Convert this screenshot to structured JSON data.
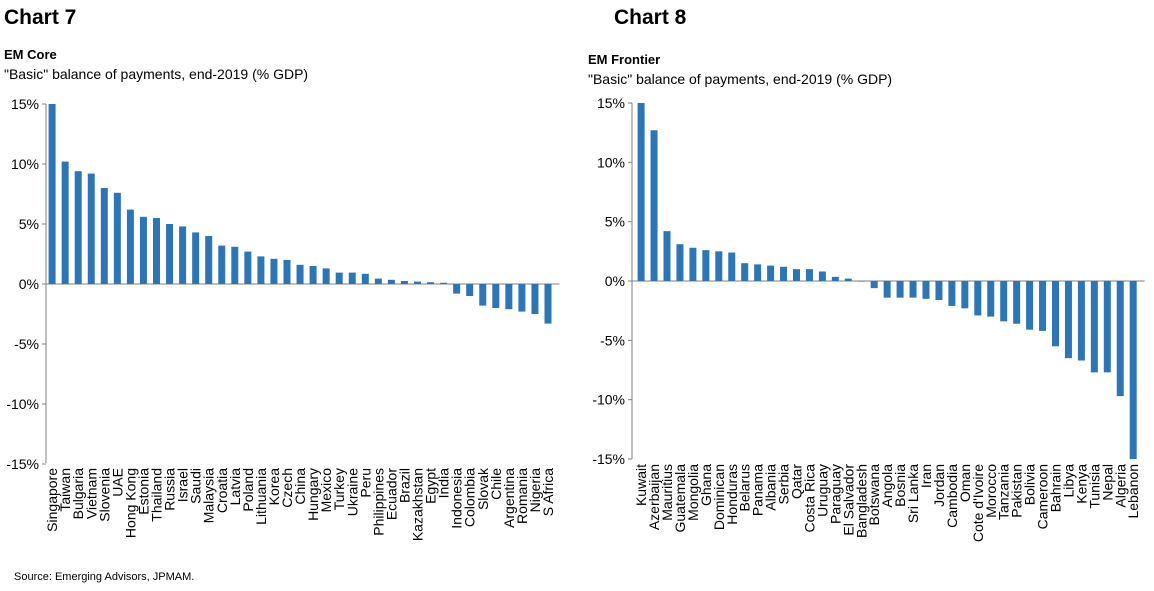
{
  "source": "Source: Emerging Advisors, JPMAM.",
  "charts": [
    {
      "heading": "Chart 7",
      "title": "EM Core",
      "subtitle": "\"Basic\" balance of payments, end-2019 (% GDP)"
    },
    {
      "heading": "Chart 8",
      "title": "EM Frontier",
      "subtitle": "\"Basic\" balance of payments, end-2019 (% GDP)"
    }
  ],
  "colors": {
    "bar": "#2e75b6",
    "axis": "#808080"
  },
  "chart_data": [
    {
      "type": "bar",
      "title": "EM Core",
      "subtitle": "\"Basic\" balance of payments, end-2019 (% GDP)",
      "ylim": [
        -15,
        15
      ],
      "yticks": [
        15,
        10,
        5,
        0,
        -5,
        -10,
        -15
      ],
      "ytick_labels": [
        "15%",
        "10%",
        "5%",
        "0%",
        "-5%",
        "-10%",
        "-15%"
      ],
      "grid": false,
      "categories": [
        "Singapore",
        "Taiwan",
        "Bulgaria",
        "Vietnam",
        "Slovenia",
        "UAE",
        "Hong Kong",
        "Estonia",
        "Thailand",
        "Russia",
        "Israel",
        "Saudi",
        "Malaysia",
        "Croatia",
        "Latvia",
        "Poland",
        "Lithuania",
        "Korea",
        "Czech",
        "China",
        "Hungary",
        "Mexico",
        "Turkey",
        "Ukraine",
        "Peru",
        "Philippines",
        "Ecuador",
        "Brazil",
        "Kazakhstan",
        "Egypt",
        "India",
        "Indonesia",
        "Colombia",
        "Slovak",
        "Chile",
        "Argentina",
        "Romania",
        "Nigeria",
        "S Africa"
      ],
      "values": [
        15.0,
        10.2,
        9.4,
        9.2,
        8.0,
        7.6,
        6.2,
        5.6,
        5.5,
        5.0,
        4.8,
        4.3,
        4.0,
        3.2,
        3.1,
        2.7,
        2.3,
        2.1,
        2.0,
        1.6,
        1.5,
        1.3,
        0.95,
        0.95,
        0.85,
        0.45,
        0.35,
        0.25,
        0.2,
        0.15,
        0.1,
        -0.8,
        -1.0,
        -1.8,
        -2.0,
        -2.1,
        -2.3,
        -2.5,
        -3.3
      ]
    },
    {
      "type": "bar",
      "title": "EM Frontier",
      "subtitle": "\"Basic\" balance of payments, end-2019 (% GDP)",
      "ylim": [
        -15,
        15
      ],
      "yticks": [
        15,
        10,
        5,
        0,
        -5,
        -10,
        -15
      ],
      "ytick_labels": [
        "15%",
        "10%",
        "5%",
        "0%",
        "-5%",
        "-10%",
        "-15%"
      ],
      "grid": false,
      "categories": [
        "Kuwait",
        "Azerbaijan",
        "Mauritius",
        "Guatemala",
        "Mongolia",
        "Ghana",
        "Dominican",
        "Honduras",
        "Belarus",
        "Panama",
        "Albania",
        "Serbia",
        "Qatar",
        "Costa Rica",
        "Uruguay",
        "Paraguay",
        "El Salvador",
        "Bangladesh",
        "Botswana",
        "Angola",
        "Bosnia",
        "Sri Lanka",
        "Iran",
        "Jordan",
        "Cambodia",
        "Oman",
        "Cote d'Ivoire",
        "Morocco",
        "Tanzania",
        "Pakistan",
        "Bolivia",
        "Cameroon",
        "Bahrain",
        "Libya",
        "Kenya",
        "Tunisia",
        "Nepal",
        "Algeria",
        "Lebanon"
      ],
      "values": [
        15.0,
        12.7,
        4.2,
        3.1,
        2.8,
        2.6,
        2.5,
        2.4,
        1.5,
        1.4,
        1.3,
        1.2,
        1.0,
        1.0,
        0.8,
        0.35,
        0.2,
        -0.05,
        -0.6,
        -1.4,
        -1.4,
        -1.4,
        -1.5,
        -1.6,
        -2.1,
        -2.3,
        -2.9,
        -3.0,
        -3.4,
        -3.6,
        -4.1,
        -4.2,
        -5.5,
        -6.5,
        -6.7,
        -7.7,
        -7.7,
        -9.7,
        -15.0
      ]
    }
  ]
}
